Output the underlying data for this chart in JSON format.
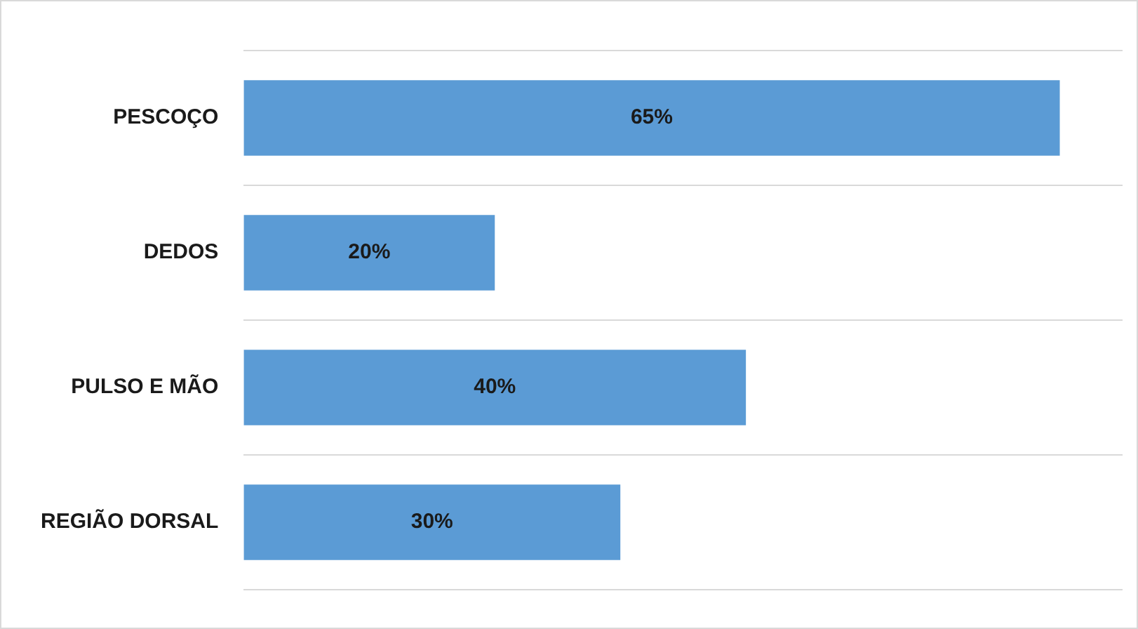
{
  "chart_data": {
    "type": "bar",
    "orientation": "horizontal",
    "categories": [
      "PESCOÇO",
      "DEDOS",
      "PULSO E MÃO",
      "REGIÃO DORSAL"
    ],
    "values": [
      65,
      20,
      40,
      30
    ],
    "color": "#5b9bd5",
    "value_labels": [
      "65%",
      "20%",
      "40%",
      "30%"
    ],
    "grid": "y",
    "legend": false,
    "tick_labels": "y"
  }
}
